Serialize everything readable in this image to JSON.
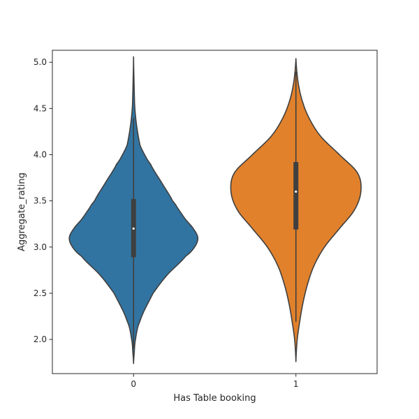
{
  "chart_data": {
    "type": "violin",
    "xlabel": "Has Table booking",
    "ylabel": "Aggregate_rating",
    "categories": [
      "0",
      "1"
    ],
    "ylim": [
      1.63,
      5.13
    ],
    "yticks": [
      2.0,
      2.5,
      3.0,
      3.5,
      4.0,
      4.5,
      5.0
    ],
    "ytick_labels": [
      "2.0",
      "2.5",
      "3.0",
      "3.5",
      "4.0",
      "4.5",
      "5.0"
    ],
    "grid": false,
    "series": [
      {
        "category": "0",
        "color": "#3274a1",
        "range": [
          1.74,
          5.06
        ],
        "whisker": [
          1.9,
          4.4
        ],
        "quartiles": [
          2.89,
          3.52
        ],
        "median": 3.2,
        "density": [
          [
            1.74,
            0.0
          ],
          [
            1.85,
            0.01
          ],
          [
            2.0,
            0.03
          ],
          [
            2.2,
            0.1
          ],
          [
            2.5,
            0.3
          ],
          [
            2.7,
            0.52
          ],
          [
            2.9,
            0.8
          ],
          [
            3.0,
            0.94
          ],
          [
            3.1,
            0.99
          ],
          [
            3.2,
            0.92
          ],
          [
            3.3,
            0.8
          ],
          [
            3.4,
            0.7
          ],
          [
            3.5,
            0.6
          ],
          [
            3.7,
            0.43
          ],
          [
            3.9,
            0.26
          ],
          [
            4.0,
            0.17
          ],
          [
            4.1,
            0.1
          ],
          [
            4.3,
            0.05
          ],
          [
            4.5,
            0.02
          ],
          [
            4.7,
            0.01
          ],
          [
            5.06,
            0.0
          ]
        ]
      },
      {
        "category": "1",
        "color": "#e1812c",
        "range": [
          1.76,
          5.04
        ],
        "whisker": [
          2.19,
          4.9
        ],
        "quartiles": [
          3.19,
          3.92
        ],
        "median": 3.6,
        "density": [
          [
            1.76,
            0.0
          ],
          [
            2.0,
            0.02
          ],
          [
            2.2,
            0.06
          ],
          [
            2.4,
            0.11
          ],
          [
            2.6,
            0.18
          ],
          [
            2.8,
            0.28
          ],
          [
            3.0,
            0.44
          ],
          [
            3.2,
            0.67
          ],
          [
            3.4,
            0.9
          ],
          [
            3.6,
            1.0
          ],
          [
            3.8,
            0.95
          ],
          [
            4.0,
            0.67
          ],
          [
            4.2,
            0.38
          ],
          [
            4.4,
            0.2
          ],
          [
            4.6,
            0.09
          ],
          [
            4.8,
            0.03
          ],
          [
            5.04,
            0.0
          ]
        ]
      }
    ]
  }
}
